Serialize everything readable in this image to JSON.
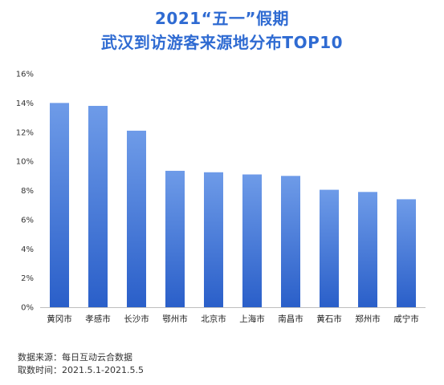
{
  "title": {
    "line1": "2021“五一”假期",
    "line2": "武汉到访游客来源地分布TOP10"
  },
  "footer": {
    "source_label": "数据来源：",
    "source_value": "每日互动云合数据",
    "date_label": "取数时间：",
    "date_value": "2021.5.1-2021.5.5"
  },
  "colors": {
    "title": "#2f6bd2",
    "bar_top": "#6e9be8",
    "bar_bottom": "#2a5fc9",
    "axis": "#bfbfbf"
  },
  "chart_data": {
    "type": "bar",
    "title": "2021“五一”假期 武汉到访游客来源地分布TOP10",
    "categories": [
      "黄冈市",
      "孝感市",
      "长沙市",
      "鄂州市",
      "北京市",
      "上海市",
      "南昌市",
      "黄石市",
      "郑州市",
      "咸宁市"
    ],
    "values": [
      14.0,
      13.8,
      12.1,
      9.35,
      9.25,
      9.1,
      9.0,
      8.05,
      7.9,
      7.4
    ],
    "ylim": [
      0,
      16
    ],
    "yticks": [
      "0%",
      "2%",
      "4%",
      "6%",
      "8%",
      "10%",
      "12%",
      "14%",
      "16%"
    ],
    "xlabel": "",
    "ylabel": "",
    "grid": false,
    "legend": "none"
  }
}
